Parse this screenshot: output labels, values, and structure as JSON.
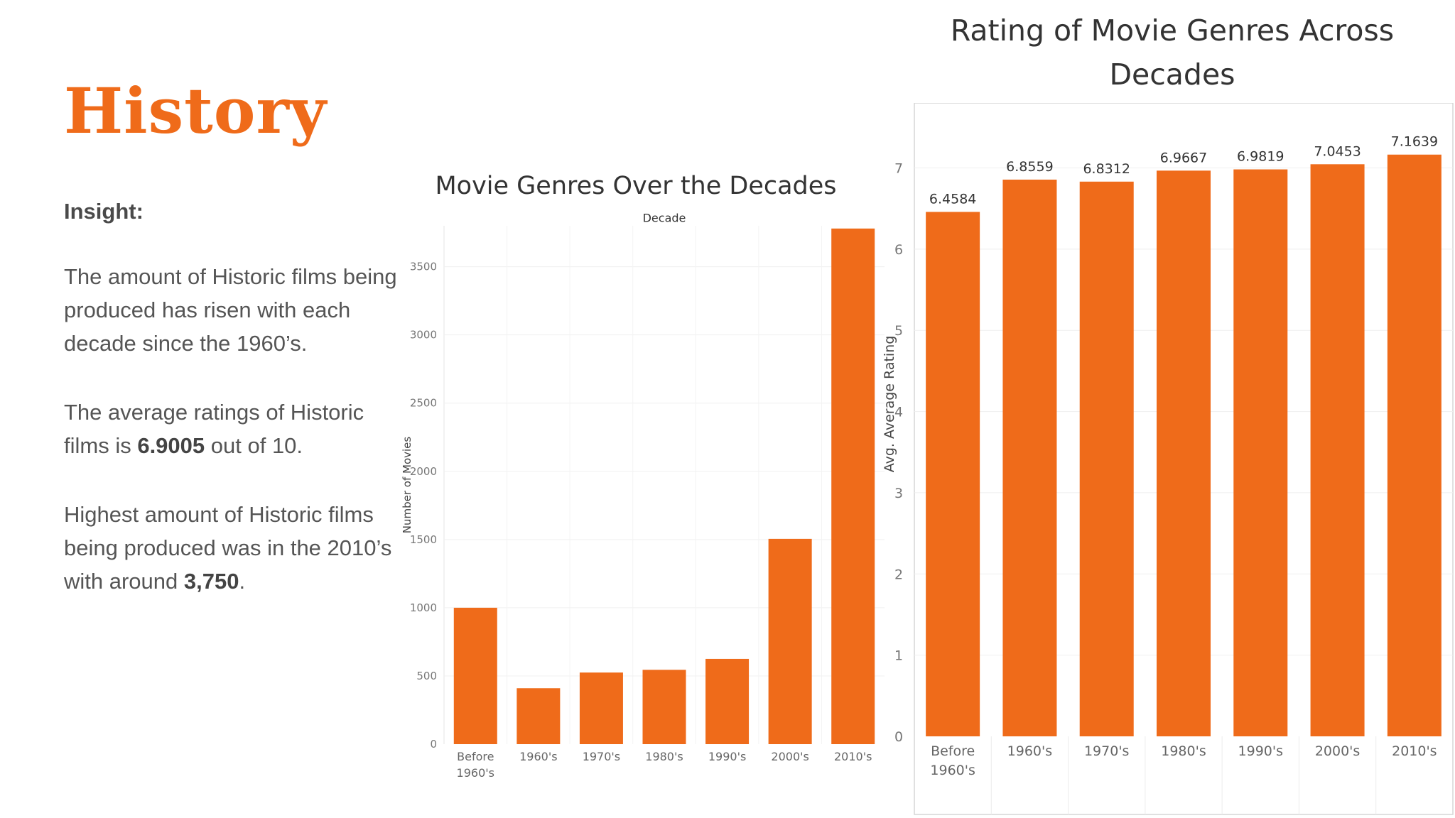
{
  "page": {
    "title": "History"
  },
  "insight": {
    "heading": "Insight:",
    "p1": "The amount of Historic films being produced has risen with each decade since the 1960’s.",
    "p2_before": "The average ratings of Historic films is ",
    "p2_bold": "6.9005",
    "p2_after": " out of 10.",
    "p3_before": "Highest amount of Historic films being produced was in the 2010’s with around ",
    "p3_bold": "3,750",
    "p3_after": "."
  },
  "colors": {
    "accent": "#ef6b1a",
    "bar": "#ef6b1a"
  },
  "chart_data": [
    {
      "type": "bar",
      "title": "Movie Genres Over the Decades",
      "xlabel": "Decade",
      "ylabel": "Number of Movies",
      "categories": [
        "Before 1960's",
        "1960's",
        "1970's",
        "1980's",
        "1990's",
        "2000's",
        "2010's"
      ],
      "values": [
        1000,
        410,
        525,
        545,
        625,
        1505,
        3780
      ],
      "ylim": [
        0,
        3800
      ],
      "yticks": [
        0,
        500,
        1000,
        1500,
        2000,
        2500,
        3000,
        3500
      ],
      "grid": true
    },
    {
      "type": "bar",
      "title": "Rating of Movie Genres Across Decades",
      "xlabel": "",
      "ylabel": "Avg. Average Rating",
      "categories": [
        "Before 1960's",
        "1960's",
        "1970's",
        "1980's",
        "1990's",
        "2000's",
        "2010's"
      ],
      "values": [
        6.4584,
        6.8559,
        6.8312,
        6.9667,
        6.9819,
        7.0453,
        7.1639
      ],
      "data_labels": [
        "6.4584",
        "6.8559",
        "6.8312",
        "6.9667",
        "6.9819",
        "7.0453",
        "7.1639"
      ],
      "ylim": [
        0,
        7.8
      ],
      "yticks": [
        0,
        1,
        2,
        3,
        4,
        5,
        6,
        7
      ],
      "grid": true
    }
  ]
}
